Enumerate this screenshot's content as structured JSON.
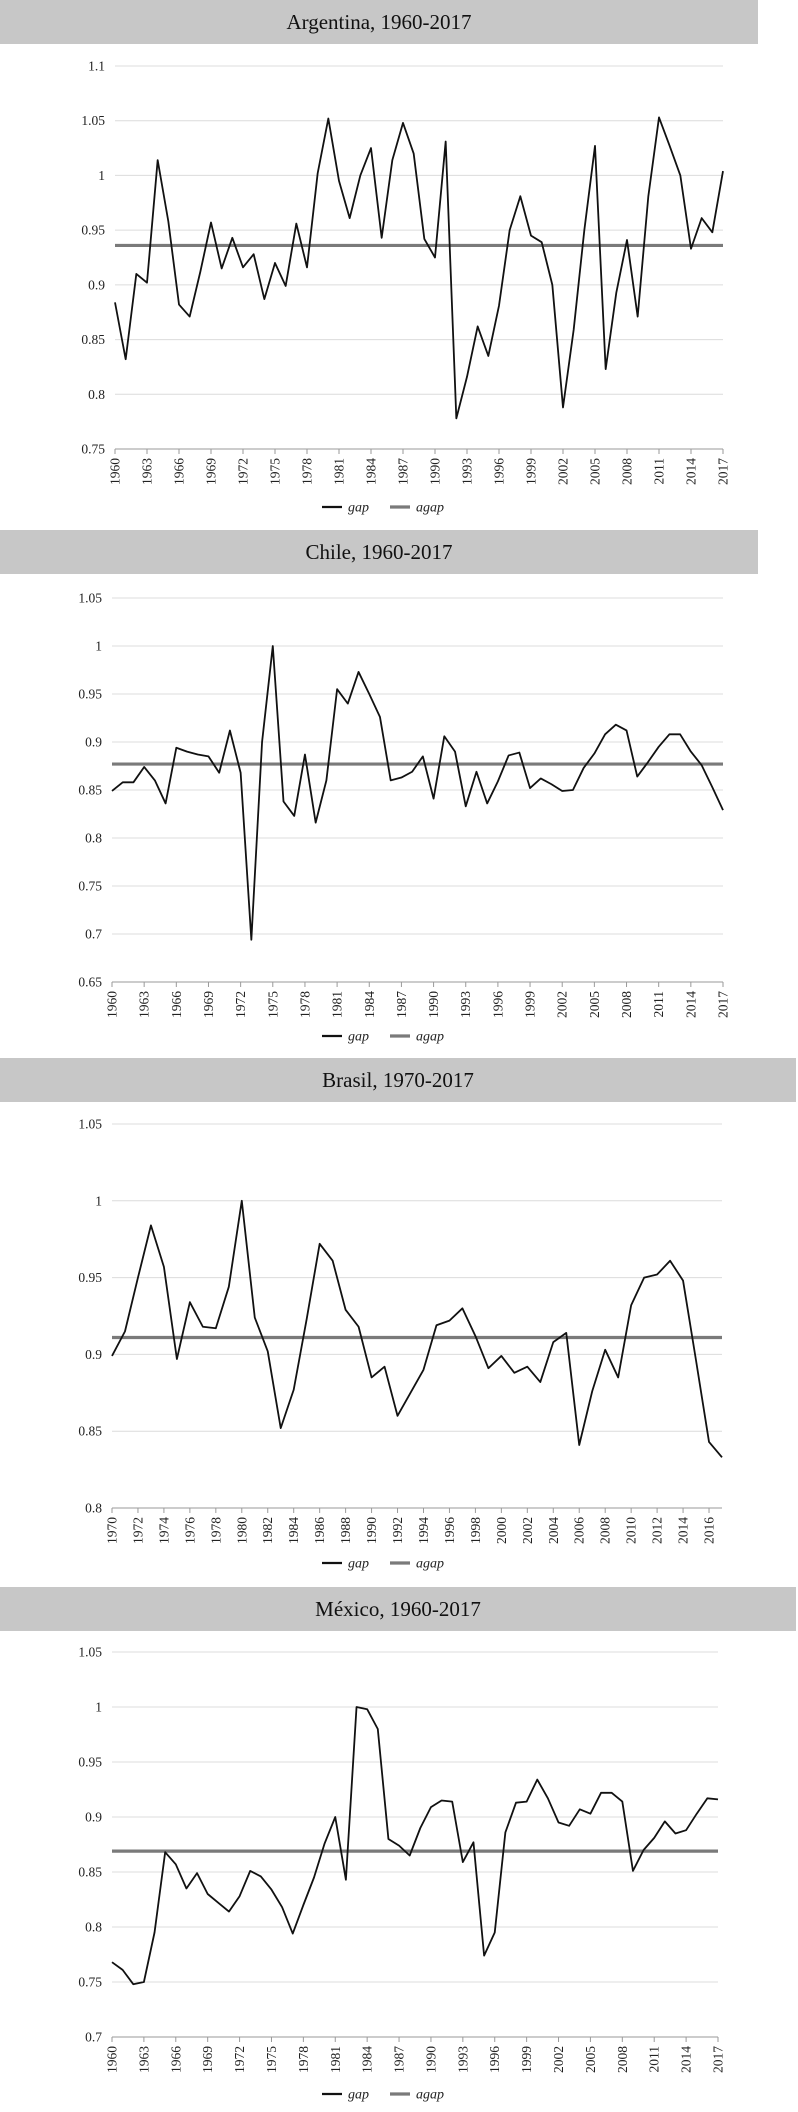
{
  "chart_data": [
    {
      "type": "line",
      "title": "Argentina, 1960-2017",
      "ylim": [
        0.75,
        1.1
      ],
      "yticks": [
        "0.75",
        "0.8",
        "0.85",
        "0.9",
        "0.95",
        "1",
        "1.05",
        "1.1"
      ],
      "x": [
        1960,
        1961,
        1962,
        1963,
        1964,
        1965,
        1966,
        1967,
        1968,
        1969,
        1970,
        1971,
        1972,
        1973,
        1974,
        1975,
        1976,
        1977,
        1978,
        1979,
        1980,
        1981,
        1982,
        1983,
        1984,
        1985,
        1986,
        1987,
        1988,
        1989,
        1990,
        1991,
        1992,
        1993,
        1994,
        1995,
        1996,
        1997,
        1998,
        1999,
        2000,
        2001,
        2002,
        2003,
        2004,
        2005,
        2006,
        2007,
        2008,
        2009,
        2010,
        2011,
        2012,
        2013,
        2014,
        2015,
        2016,
        2017
      ],
      "xticks": [
        1960,
        1963,
        1966,
        1969,
        1972,
        1975,
        1978,
        1981,
        1984,
        1987,
        1990,
        1993,
        1996,
        1999,
        2002,
        2005,
        2008,
        2011,
        2014,
        2017
      ],
      "series": [
        {
          "name": "gap",
          "color": "#111111",
          "values": [
            0.884,
            0.832,
            0.91,
            0.902,
            1.014,
            0.958,
            0.882,
            0.871,
            0.912,
            0.957,
            0.915,
            0.943,
            0.916,
            0.928,
            0.887,
            0.92,
            0.899,
            0.956,
            0.916,
            1.002,
            1.052,
            0.995,
            0.961,
            1.0,
            1.025,
            0.943,
            1.014,
            1.048,
            1.02,
            0.942,
            0.925,
            1.031,
            0.778,
            0.816,
            0.862,
            0.835,
            0.881,
            0.95,
            0.981,
            0.945,
            0.939,
            0.9,
            0.788,
            0.859,
            0.95,
            1.027,
            0.823,
            0.893,
            0.941,
            0.871,
            0.981,
            1.053,
            1.027,
            1.0,
            0.933,
            0.961,
            0.948,
            1.004
          ]
        },
        {
          "name": "agap",
          "color": "#7a7a7a",
          "values": [
            0.936,
            0.936,
            0.936,
            0.936,
            0.936,
            0.936,
            0.936,
            0.936,
            0.936,
            0.936,
            0.936,
            0.936,
            0.936,
            0.936,
            0.936,
            0.936,
            0.936,
            0.936,
            0.936,
            0.936,
            0.936,
            0.936,
            0.936,
            0.936,
            0.936,
            0.936,
            0.936,
            0.936,
            0.936,
            0.936,
            0.936,
            0.936,
            0.936,
            0.936,
            0.936,
            0.936,
            0.936,
            0.936,
            0.936,
            0.936,
            0.936,
            0.936,
            0.936,
            0.936,
            0.936,
            0.936,
            0.936,
            0.936,
            0.936,
            0.936,
            0.936,
            0.936,
            0.936,
            0.936,
            0.936,
            0.936,
            0.936,
            0.936
          ]
        }
      ],
      "legend": "bottom"
    },
    {
      "type": "line",
      "title": "Chile, 1960-2017",
      "ylim": [
        0.65,
        1.05
      ],
      "yticks": [
        "0.65",
        "0.7",
        "0.75",
        "0.8",
        "0.85",
        "0.9",
        "0.95",
        "1",
        "1.05"
      ],
      "x": [
        1960,
        1961,
        1962,
        1963,
        1964,
        1965,
        1966,
        1967,
        1968,
        1969,
        1970,
        1971,
        1972,
        1973,
        1974,
        1975,
        1976,
        1977,
        1978,
        1979,
        1980,
        1981,
        1982,
        1983,
        1984,
        1985,
        1986,
        1987,
        1988,
        1989,
        1990,
        1991,
        1992,
        1993,
        1994,
        1995,
        1996,
        1997,
        1998,
        1999,
        2000,
        2001,
        2002,
        2003,
        2004,
        2005,
        2006,
        2007,
        2008,
        2009,
        2010,
        2011,
        2012,
        2013,
        2014,
        2015,
        2016,
        2017
      ],
      "xticks": [
        1960,
        1963,
        1966,
        1969,
        1972,
        1975,
        1978,
        1981,
        1984,
        1987,
        1990,
        1993,
        1996,
        1999,
        2002,
        2005,
        2008,
        2011,
        2014,
        2017
      ],
      "series": [
        {
          "name": "gap",
          "color": "#111111",
          "values": [
            0.849,
            0.858,
            0.858,
            0.874,
            0.86,
            0.836,
            0.894,
            0.89,
            0.887,
            0.885,
            0.868,
            0.912,
            0.868,
            0.694,
            0.9,
            1.0,
            0.838,
            0.823,
            0.887,
            0.816,
            0.86,
            0.955,
            0.94,
            0.973,
            0.95,
            0.926,
            0.86,
            0.863,
            0.869,
            0.885,
            0.841,
            0.906,
            0.89,
            0.833,
            0.869,
            0.836,
            0.859,
            0.886,
            0.889,
            0.852,
            0.862,
            0.856,
            0.849,
            0.85,
            0.873,
            0.888,
            0.908,
            0.918,
            0.912,
            0.864,
            0.879,
            0.895,
            0.908,
            0.908,
            0.89,
            0.876,
            0.853,
            0.829
          ]
        },
        {
          "name": "agap",
          "color": "#7a7a7a",
          "values": [
            0.877,
            0.877,
            0.877,
            0.877,
            0.877,
            0.877,
            0.877,
            0.877,
            0.877,
            0.877,
            0.877,
            0.877,
            0.877,
            0.877,
            0.877,
            0.877,
            0.877,
            0.877,
            0.877,
            0.877,
            0.877,
            0.877,
            0.877,
            0.877,
            0.877,
            0.877,
            0.877,
            0.877,
            0.877,
            0.877,
            0.877,
            0.877,
            0.877,
            0.877,
            0.877,
            0.877,
            0.877,
            0.877,
            0.877,
            0.877,
            0.877,
            0.877,
            0.877,
            0.877,
            0.877,
            0.877,
            0.877,
            0.877,
            0.877,
            0.877,
            0.877,
            0.877,
            0.877,
            0.877,
            0.877,
            0.877,
            0.877,
            0.877
          ]
        }
      ],
      "legend": "bottom"
    },
    {
      "type": "line",
      "title": "Brasil, 1970-2017",
      "ylim": [
        0.8,
        1.05
      ],
      "yticks": [
        "0.8",
        "0.85",
        "0.9",
        "0.95",
        "1",
        "1.05"
      ],
      "x": [
        1970,
        1971,
        1972,
        1973,
        1974,
        1975,
        1976,
        1977,
        1978,
        1979,
        1980,
        1981,
        1982,
        1983,
        1984,
        1985,
        1986,
        1987,
        1988,
        1989,
        1990,
        1991,
        1992,
        1993,
        1994,
        1995,
        1996,
        1997,
        1998,
        1999,
        2000,
        2001,
        2002,
        2003,
        2004,
        2005,
        2006,
        2007,
        2008,
        2009,
        2010,
        2011,
        2012,
        2013,
        2014,
        2015,
        2016,
        2017
      ],
      "xticks": [
        1970,
        1972,
        1974,
        1976,
        1978,
        1980,
        1982,
        1984,
        1986,
        1988,
        1990,
        1992,
        1994,
        1996,
        1998,
        2000,
        2002,
        2004,
        2006,
        2008,
        2010,
        2012,
        2014,
        2016
      ],
      "series": [
        {
          "name": "gap",
          "color": "#111111",
          "values": [
            0.899,
            0.915,
            0.95,
            0.984,
            0.957,
            0.897,
            0.934,
            0.918,
            0.917,
            0.944,
            1.0,
            0.924,
            0.902,
            0.852,
            0.877,
            0.923,
            0.972,
            0.961,
            0.929,
            0.918,
            0.885,
            0.892,
            0.86,
            0.875,
            0.89,
            0.919,
            0.922,
            0.93,
            0.912,
            0.891,
            0.899,
            0.888,
            0.892,
            0.882,
            0.908,
            0.914,
            0.841,
            0.876,
            0.903,
            0.885,
            0.932,
            0.95,
            0.952,
            0.961,
            0.948,
            0.896,
            0.843,
            0.833
          ]
        },
        {
          "name": "agap",
          "color": "#7a7a7a",
          "values": [
            0.911,
            0.911,
            0.911,
            0.911,
            0.911,
            0.911,
            0.911,
            0.911,
            0.911,
            0.911,
            0.911,
            0.911,
            0.911,
            0.911,
            0.911,
            0.911,
            0.911,
            0.911,
            0.911,
            0.911,
            0.911,
            0.911,
            0.911,
            0.911,
            0.911,
            0.911,
            0.911,
            0.911,
            0.911,
            0.911,
            0.911,
            0.911,
            0.911,
            0.911,
            0.911,
            0.911,
            0.911,
            0.911,
            0.911,
            0.911,
            0.911,
            0.911,
            0.911,
            0.911,
            0.911,
            0.911,
            0.911,
            0.911
          ]
        }
      ],
      "legend": "bottom"
    },
    {
      "type": "line",
      "title": "México, 1960-2017",
      "ylim": [
        0.7,
        1.05
      ],
      "yticks": [
        "0.7",
        "0.75",
        "0.8",
        "0.85",
        "0.9",
        "0.95",
        "1",
        "1.05"
      ],
      "x": [
        1960,
        1961,
        1962,
        1963,
        1964,
        1965,
        1966,
        1967,
        1968,
        1969,
        1970,
        1971,
        1972,
        1973,
        1974,
        1975,
        1976,
        1977,
        1978,
        1979,
        1980,
        1981,
        1982,
        1983,
        1984,
        1985,
        1986,
        1987,
        1988,
        1989,
        1990,
        1991,
        1992,
        1993,
        1994,
        1995,
        1996,
        1997,
        1998,
        1999,
        2000,
        2001,
        2002,
        2003,
        2004,
        2005,
        2006,
        2007,
        2008,
        2009,
        2010,
        2011,
        2012,
        2013,
        2014,
        2015,
        2016,
        2017
      ],
      "xticks": [
        1960,
        1963,
        1966,
        1969,
        1972,
        1975,
        1978,
        1981,
        1984,
        1987,
        1990,
        1993,
        1996,
        1999,
        2002,
        2005,
        2008,
        2011,
        2014,
        2017
      ],
      "series": [
        {
          "name": "gap",
          "color": "#111111",
          "values": [
            0.768,
            0.761,
            0.748,
            0.75,
            0.795,
            0.868,
            0.857,
            0.835,
            0.849,
            0.83,
            0.822,
            0.814,
            0.828,
            0.851,
            0.846,
            0.834,
            0.818,
            0.794,
            0.82,
            0.845,
            0.876,
            0.9,
            0.843,
            1.0,
            0.998,
            0.98,
            0.88,
            0.874,
            0.865,
            0.89,
            0.909,
            0.915,
            0.914,
            0.859,
            0.877,
            0.774,
            0.795,
            0.886,
            0.913,
            0.914,
            0.934,
            0.917,
            0.895,
            0.892,
            0.907,
            0.903,
            0.922,
            0.922,
            0.914,
            0.851,
            0.87,
            0.881,
            0.896,
            0.885,
            0.888,
            0.903,
            0.917,
            0.916
          ]
        },
        {
          "name": "agap",
          "color": "#7a7a7a",
          "values": [
            0.869,
            0.869,
            0.869,
            0.869,
            0.869,
            0.869,
            0.869,
            0.869,
            0.869,
            0.869,
            0.869,
            0.869,
            0.869,
            0.869,
            0.869,
            0.869,
            0.869,
            0.869,
            0.869,
            0.869,
            0.869,
            0.869,
            0.869,
            0.869,
            0.869,
            0.869,
            0.869,
            0.869,
            0.869,
            0.869,
            0.869,
            0.869,
            0.869,
            0.869,
            0.869,
            0.869,
            0.869,
            0.869,
            0.869,
            0.869,
            0.869,
            0.869,
            0.869,
            0.869,
            0.869,
            0.869,
            0.869,
            0.869,
            0.869,
            0.869,
            0.869,
            0.869,
            0.869,
            0.869,
            0.869,
            0.869,
            0.869,
            0.869
          ]
        }
      ],
      "legend": "bottom"
    }
  ]
}
